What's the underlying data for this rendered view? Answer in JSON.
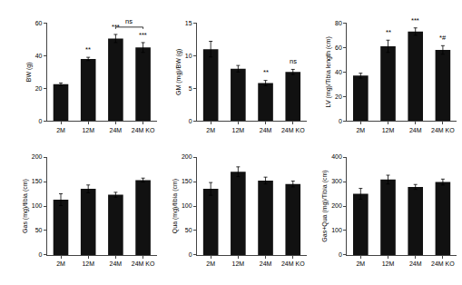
{
  "chart_data": [
    {
      "type": "bar",
      "ylabel": "BW (g)",
      "categories": [
        "2M",
        "12M",
        "24M",
        "24M KO"
      ],
      "values": [
        22.5,
        38.0,
        50.5,
        45.0
      ],
      "errors": [
        0.8,
        1.0,
        2.5,
        3.0
      ],
      "ylim": [
        0,
        60
      ],
      "yticks": [
        0,
        20,
        40,
        60
      ],
      "significance": [
        null,
        "**",
        "***",
        "***"
      ],
      "bracket": {
        "label": "ns",
        "from": "24M",
        "to": "24M KO",
        "y": 57.5
      },
      "color": "#111111",
      "grid": false
    },
    {
      "type": "bar",
      "ylabel": "GM (mg)/BW (g)",
      "categories": [
        "2M",
        "12M",
        "24M",
        "24M KO"
      ],
      "values": [
        11.0,
        8.0,
        5.8,
        7.5
      ],
      "errors": [
        1.2,
        0.5,
        0.4,
        0.4
      ],
      "ylim": [
        0,
        15
      ],
      "yticks": [
        0,
        5,
        10,
        15
      ],
      "significance": [
        null,
        null,
        "**",
        "ns"
      ],
      "color": "#111111",
      "grid": false
    },
    {
      "type": "bar",
      "ylabel": "LV (mg)/Tibia length (cm)",
      "categories": [
        "2M",
        "12M",
        "24M",
        "24M KO"
      ],
      "values": [
        37.0,
        61.0,
        73.0,
        58.0
      ],
      "errors": [
        2.0,
        5.0,
        3.0,
        3.5
      ],
      "ylim": [
        0,
        80
      ],
      "yticks": [
        0,
        20,
        40,
        60,
        80
      ],
      "significance": [
        null,
        "**",
        "***",
        "*#"
      ],
      "color": "#111111",
      "grid": false
    },
    {
      "type": "bar",
      "ylabel": "Gas (mg)/tibia (cm)",
      "categories": [
        "2M",
        "12M",
        "24M",
        "24M KO"
      ],
      "values": [
        113.0,
        135.0,
        123.0,
        153.0
      ],
      "errors": [
        12.0,
        8.0,
        5.0,
        4.0
      ],
      "ylim": [
        0,
        200
      ],
      "yticks": [
        0,
        50,
        100,
        150,
        200
      ],
      "color": "#111111",
      "grid": false
    },
    {
      "type": "bar",
      "ylabel": "Qua (mg)/tibia (cm)",
      "categories": [
        "2M",
        "12M",
        "24M",
        "24M KO"
      ],
      "values": [
        135.0,
        170.0,
        152.0,
        145.0
      ],
      "errors": [
        13.0,
        10.0,
        7.0,
        6.0
      ],
      "ylim": [
        0,
        200
      ],
      "yticks": [
        0,
        50,
        100,
        150,
        200
      ],
      "color": "#111111",
      "grid": false
    },
    {
      "type": "bar",
      "ylabel": "Gas+Qua (mg)/Tibia (cm)",
      "categories": [
        "2M",
        "12M",
        "24M",
        "24M KO"
      ],
      "values": [
        250.0,
        308.0,
        278.0,
        298.0
      ],
      "errors": [
        22.0,
        18.0,
        10.0,
        12.0
      ],
      "ylim": [
        0,
        400
      ],
      "yticks": [
        0,
        100,
        200,
        300,
        400
      ],
      "color": "#111111",
      "grid": false
    }
  ]
}
